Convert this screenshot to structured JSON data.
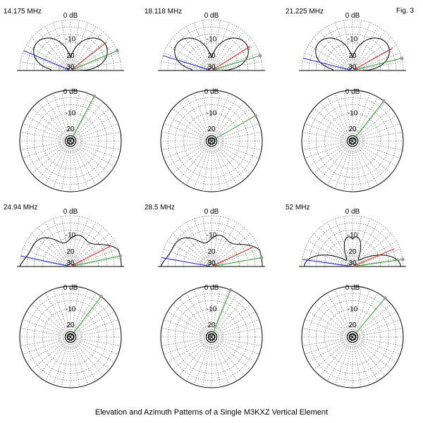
{
  "figure_label": "Fig. 3",
  "caption": "Elevation and Azimuth Patterns of a Single M3KXZ Vertical Element",
  "ring_labels": [
    "0 dB",
    "-10",
    "20",
    "30"
  ],
  "colors": {
    "green": "#2a9a2a",
    "red": "#d42020",
    "blue": "#2020c8",
    "marker": "#9a9a9a"
  },
  "panels": [
    {
      "frequency": "14.175 MHz",
      "elevation_takeoff_deg": 23,
      "elevation_pattern": "low",
      "azimuth_line_deg": 62
    },
    {
      "frequency": "18.118 MHz",
      "elevation_takeoff_deg": 17,
      "elevation_pattern": "low",
      "azimuth_line_deg": 30
    },
    {
      "frequency": "21.225 MHz",
      "elevation_takeoff_deg": 14,
      "elevation_pattern": "low",
      "azimuth_line_deg": 52
    },
    {
      "frequency": "24.94 MHz",
      "elevation_takeoff_deg": 12,
      "elevation_pattern": "mid",
      "azimuth_line_deg": 53
    },
    {
      "frequency": "28.5 MHz",
      "elevation_takeoff_deg": 10,
      "elevation_pattern": "mid",
      "azimuth_line_deg": 68
    },
    {
      "frequency": "52 MHz",
      "elevation_takeoff_deg": 8,
      "elevation_pattern": "high",
      "azimuth_line_deg": 50
    }
  ]
}
